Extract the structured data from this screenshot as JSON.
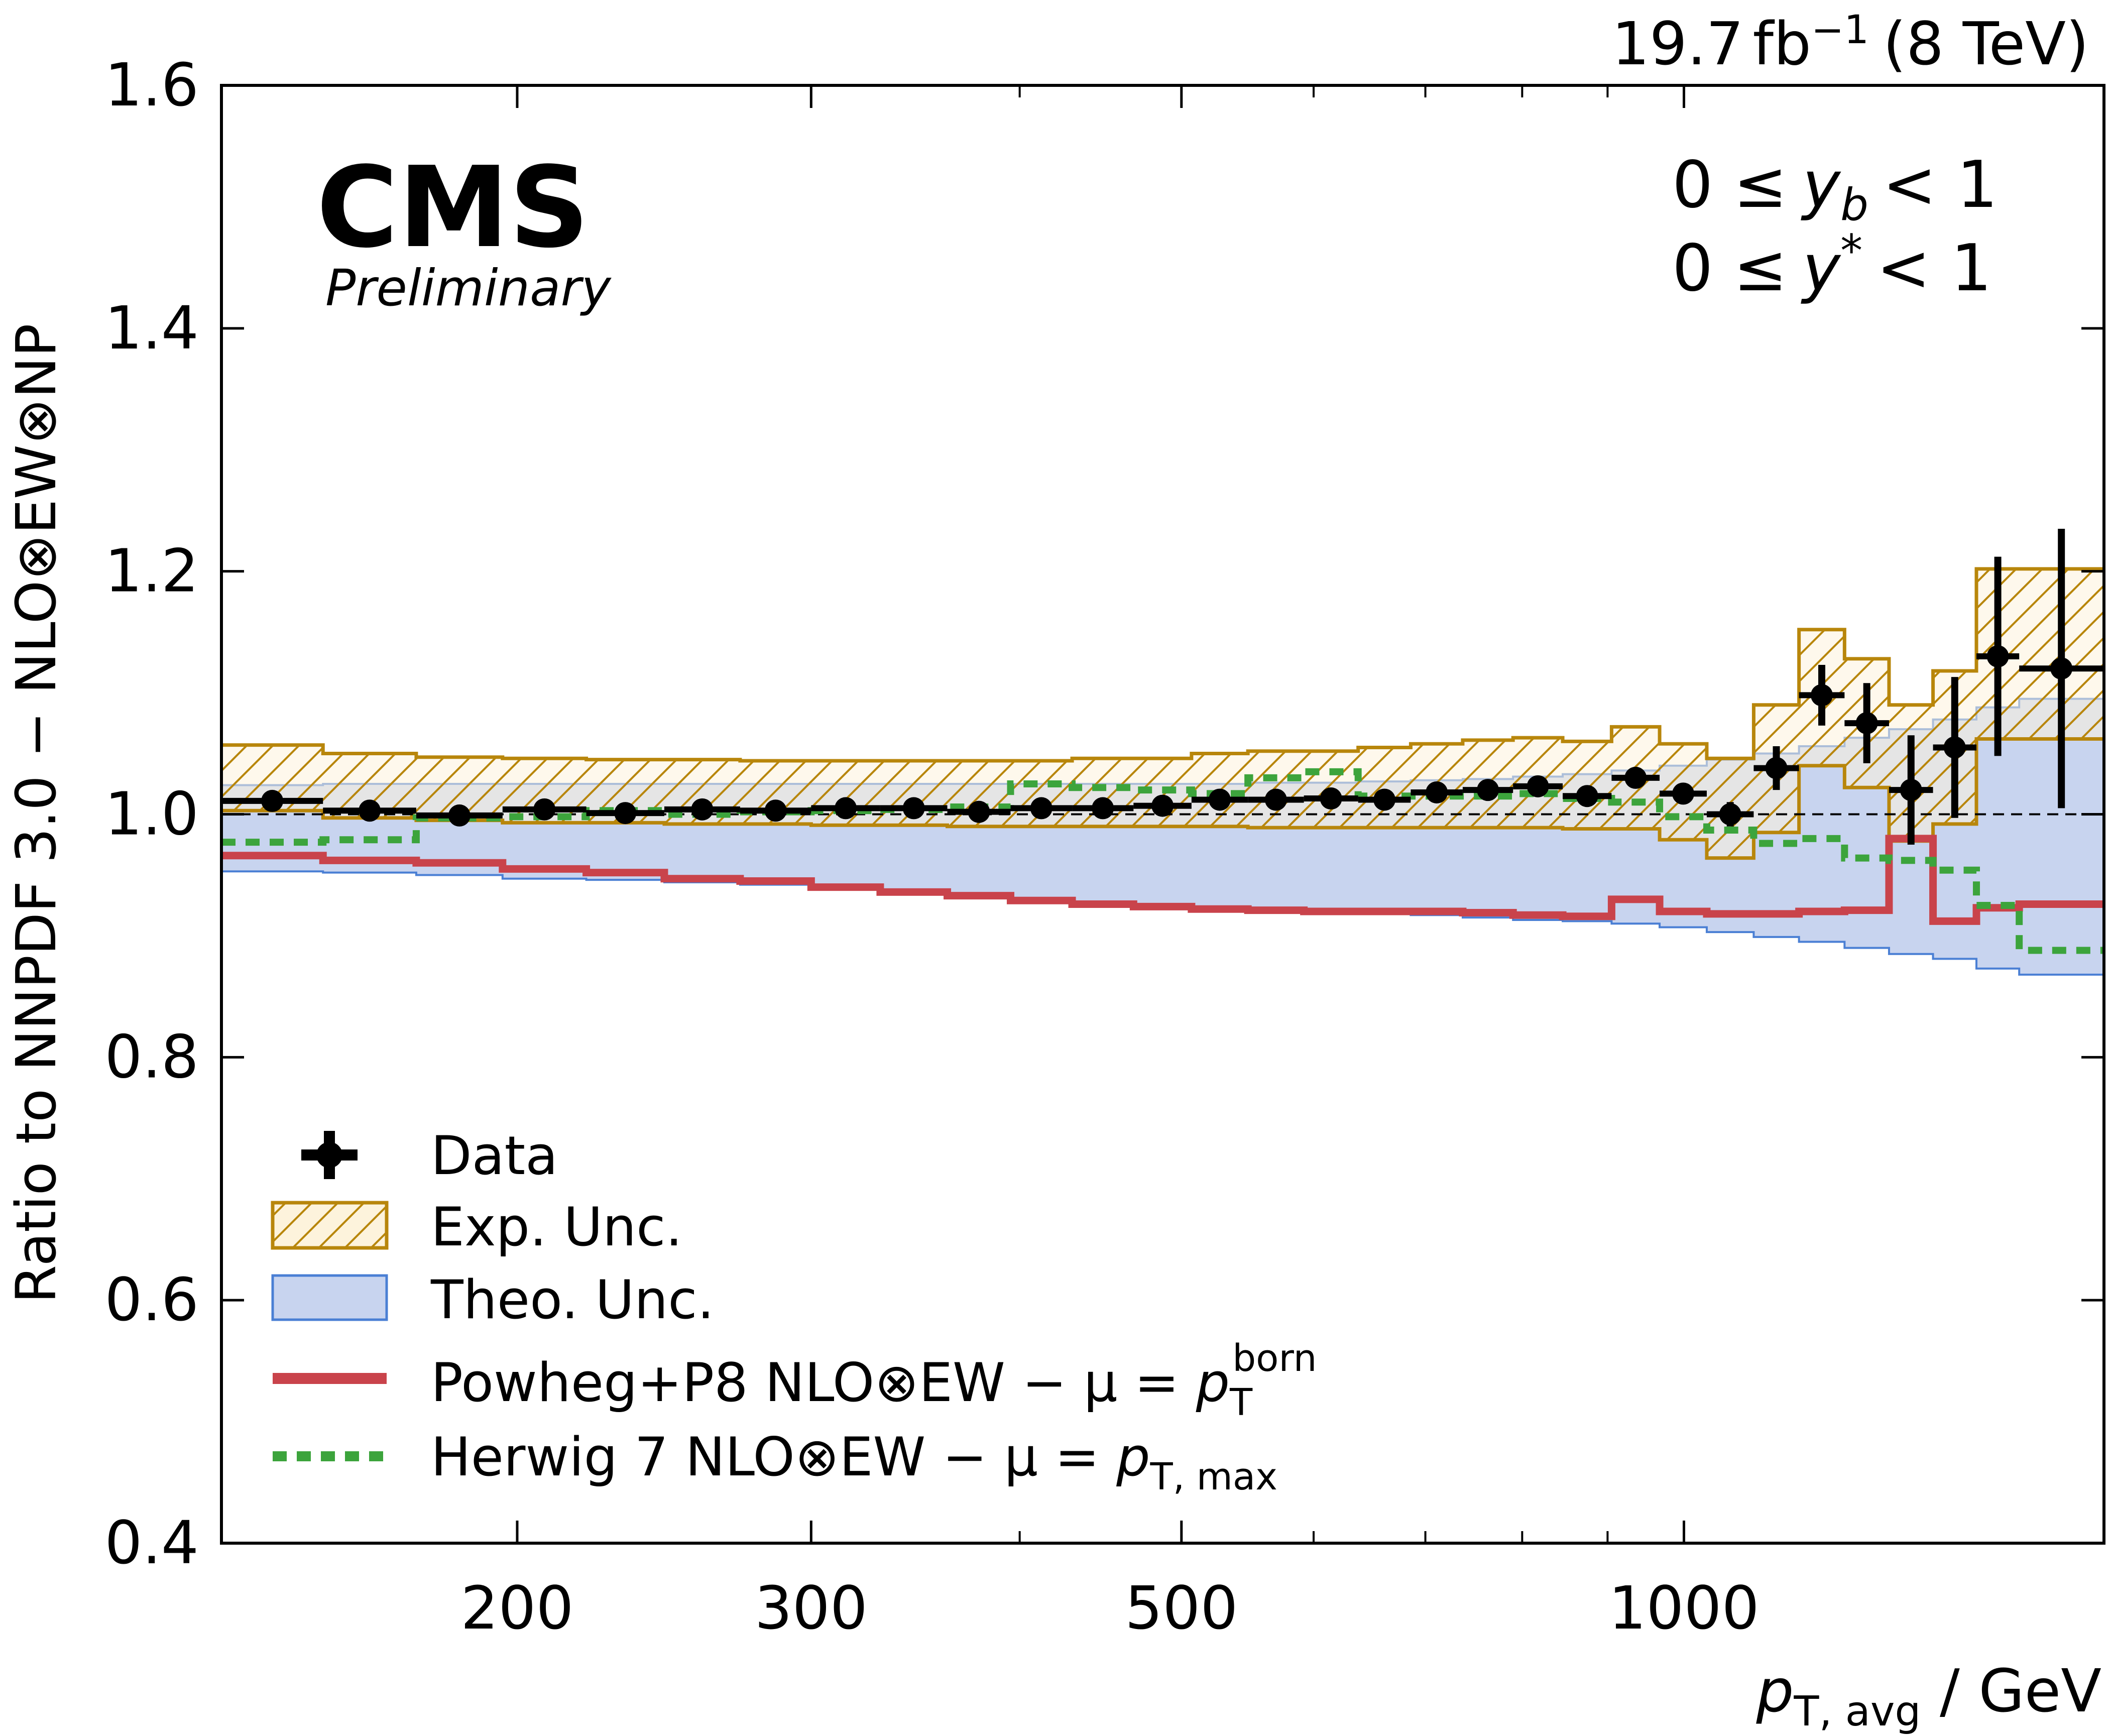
{
  "chart_data": {
    "type": "line",
    "top_label": {
      "lumi": "19.7",
      "unit_base": "fb",
      "unit_exp": "−1",
      "energy": "(8 TeV)"
    },
    "brand": {
      "title": "CMS",
      "subtitle": "Preliminary"
    },
    "cuts": {
      "line1_lhs": "0 ≤",
      "line1_var": "y",
      "line1_sub": "b",
      "line1_rhs": "< 1",
      "line2_lhs": "0 ≤",
      "line2_var": "y",
      "line2_sup": "*",
      "line2_rhs": "< 1"
    },
    "ylabel": "Ratio to NNPDF 3.0 − NLO⊗EW⊗NP",
    "xlabel": {
      "var": "p",
      "sub": "T, avg",
      "unit": " / GeV"
    },
    "xscale": "log",
    "xlim": [
      133,
      1785
    ],
    "ylim": [
      0.4,
      1.6
    ],
    "xticks": [
      200,
      300,
      500,
      1000
    ],
    "xtick_labels": [
      "200",
      "300",
      "500",
      "1000"
    ],
    "xminor": [
      400,
      600,
      700,
      800,
      900
    ],
    "yticks": [
      0.4,
      0.6,
      0.8,
      1.0,
      1.2,
      1.4,
      1.6
    ],
    "ytick_labels": [
      "0.4",
      "0.6",
      "0.8",
      "1.0",
      "1.2",
      "1.4",
      "1.6"
    ],
    "reference_line": 1.0,
    "bin_edges": [
      133,
      153,
      174,
      196,
      220,
      245,
      272,
      300,
      330,
      362,
      395,
      430,
      468,
      507,
      548,
      592,
      638,
      686,
      737,
      790,
      846,
      905,
      967,
      1032,
      1101,
      1172,
      1248,
      1327,
      1410,
      1497,
      1588,
      1784
    ],
    "data": {
      "y": [
        1.011,
        1.003,
        0.999,
        1.004,
        1.001,
        1.004,
        1.003,
        1.005,
        1.005,
        1.002,
        1.005,
        1.005,
        1.007,
        1.012,
        1.012,
        1.013,
        1.012,
        1.018,
        1.02,
        1.023,
        1.015,
        1.03,
        1.017,
        1.0,
        1.038,
        1.098,
        1.075,
        1.02,
        1.055,
        1.13,
        1.12
      ],
      "yerr": [
        0.006,
        0.006,
        0.006,
        0.006,
        0.006,
        0.006,
        0.006,
        0.006,
        0.006,
        0.006,
        0.006,
        0.006,
        0.006,
        0.006,
        0.006,
        0.006,
        0.006,
        0.006,
        0.006,
        0.006,
        0.006,
        0.007,
        0.008,
        0.01,
        0.018,
        0.025,
        0.033,
        0.045,
        0.058,
        0.082,
        0.115
      ]
    },
    "exp_band": {
      "lo": [
        1.003,
        0.997,
        0.995,
        0.993,
        0.993,
        0.992,
        0.992,
        0.991,
        0.991,
        0.99,
        0.99,
        0.99,
        0.99,
        0.99,
        0.989,
        0.989,
        0.989,
        0.989,
        0.989,
        0.989,
        0.988,
        0.988,
        0.979,
        0.964,
        0.985,
        1.04,
        1.022,
        0.978,
        0.992,
        1.062,
        1.062
      ],
      "hi": [
        1.057,
        1.05,
        1.047,
        1.046,
        1.045,
        1.045,
        1.044,
        1.044,
        1.044,
        1.044,
        1.044,
        1.046,
        1.046,
        1.05,
        1.052,
        1.052,
        1.055,
        1.058,
        1.061,
        1.063,
        1.06,
        1.072,
        1.058,
        1.046,
        1.09,
        1.152,
        1.128,
        1.09,
        1.118,
        1.202,
        1.202
      ]
    },
    "theo_band": {
      "lo": [
        0.953,
        0.952,
        0.95,
        0.947,
        0.946,
        0.944,
        0.942,
        0.94,
        0.937,
        0.933,
        0.93,
        0.927,
        0.924,
        0.921,
        0.92,
        0.919,
        0.918,
        0.917,
        0.915,
        0.913,
        0.912,
        0.91,
        0.907,
        0.903,
        0.899,
        0.895,
        0.89,
        0.885,
        0.881,
        0.873,
        0.868
      ],
      "hi": [
        1.024,
        1.025,
        1.025,
        1.025,
        1.025,
        1.025,
        1.025,
        1.025,
        1.025,
        1.025,
        1.025,
        1.025,
        1.025,
        1.025,
        1.026,
        1.026,
        1.027,
        1.028,
        1.029,
        1.031,
        1.033,
        1.036,
        1.04,
        1.045,
        1.05,
        1.056,
        1.063,
        1.07,
        1.078,
        1.088,
        1.095
      ]
    },
    "series": [
      {
        "name": "Powheg+P8 NLO⊗EW − μ = p_T^born",
        "style": "solid",
        "color": "#c9434b",
        "values": [
          0.966,
          0.962,
          0.96,
          0.955,
          0.952,
          0.947,
          0.945,
          0.94,
          0.936,
          0.933,
          0.929,
          0.926,
          0.924,
          0.922,
          0.921,
          0.92,
          0.92,
          0.92,
          0.919,
          0.917,
          0.916,
          0.93,
          0.92,
          0.918,
          0.918,
          0.92,
          0.921,
          0.98,
          0.912,
          0.923,
          0.926
        ]
      },
      {
        "name": "Herwig 7 NLO⊗EW − μ = p_T,max",
        "style": "dotted",
        "color": "#3ca43c",
        "values": [
          0.977,
          0.979,
          0.997,
          0.998,
          1.003,
          1.0,
          1.002,
          1.003,
          1.004,
          1.006,
          1.025,
          1.022,
          1.02,
          1.017,
          1.03,
          1.035,
          1.015,
          1.015,
          1.015,
          1.017,
          1.013,
          1.01,
          0.998,
          0.987,
          0.976,
          0.98,
          0.964,
          0.962,
          0.954,
          0.925,
          0.888
        ]
      }
    ],
    "legend": {
      "position": "bottom-left",
      "entries": [
        {
          "label": "Data"
        },
        {
          "label": "Exp. Unc."
        },
        {
          "label": "Theo. Unc."
        },
        {
          "label_pre": "Powheg+P8 NLO⊗EW − μ = ",
          "var": "p",
          "sub": "T",
          "sup": "born"
        },
        {
          "label_pre": "Herwig 7 NLO⊗EW − μ = ",
          "var": "p",
          "sub": "T, max"
        }
      ]
    },
    "colors": {
      "exp_edge": "#b8860b",
      "exp_fill": "#fdf3dc",
      "theo_edge": "#4a7fd4",
      "theo_fill": "#c8d4ef",
      "data": "#000000",
      "powheg": "#c9434b",
      "herwig": "#3ca43c"
    }
  }
}
